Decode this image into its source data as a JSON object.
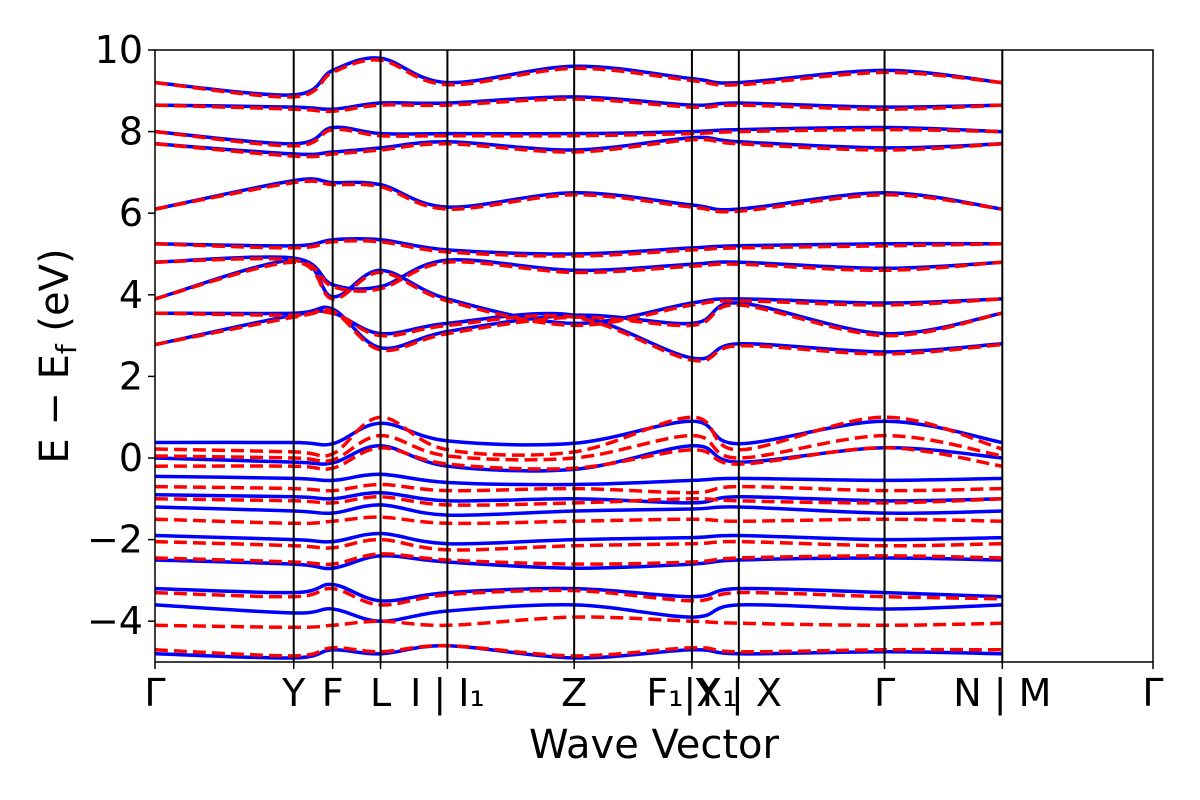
{
  "chart_data": {
    "type": "line",
    "title": "",
    "xlabel": "Wave Vector",
    "ylabel": "E − E_f (eV)",
    "ylabel_main": "E − E",
    "ylabel_sub": "f",
    "ylabel_unit": " (eV)",
    "ylim": [
      -5,
      10
    ],
    "yticks": [
      -4,
      -2,
      0,
      2,
      4,
      6,
      8,
      10
    ],
    "ytick_labels": [
      "−4",
      "−2",
      "0",
      "2",
      "4",
      "6",
      "8",
      "10"
    ],
    "grid": false,
    "kpoints": [
      {
        "label": "Γ",
        "k": 0.0
      },
      {
        "label": "Y",
        "k": 0.139
      },
      {
        "label": "F",
        "k": 0.178
      },
      {
        "label": "L",
        "k": 0.226
      },
      {
        "label": "I | I₁",
        "k": 0.293
      },
      {
        "label": "Z",
        "k": 0.42
      },
      {
        "label": "F₁|X₁",
        "k": 0.538
      },
      {
        "label": "Y | X",
        "k": 0.585
      },
      {
        "label": "Γ",
        "k": 0.731
      },
      {
        "label": "N | M",
        "k": 0.849
      },
      {
        "label": "Γ",
        "k": 0.98
      }
    ],
    "series": [
      {
        "color": "#0000ff",
        "style": "solid",
        "bands": [
          [
            0.38,
            0.38,
            0.35,
            0.85,
            0.42,
            0.36,
            0.9,
            0.35,
            0.9,
            0.38
          ],
          [
            0.0,
            -0.1,
            -0.12,
            0.3,
            -0.2,
            -0.28,
            0.3,
            -0.1,
            0.25,
            0.0
          ],
          [
            -0.45,
            -0.5,
            -0.55,
            -0.4,
            -0.6,
            -0.65,
            -0.55,
            -0.5,
            -0.55,
            -0.5
          ],
          [
            -0.9,
            -0.95,
            -1.0,
            -0.85,
            -1.05,
            -1.0,
            -1.1,
            -0.95,
            -1.05,
            -1.0
          ],
          [
            -1.2,
            -1.3,
            -1.35,
            -1.15,
            -1.4,
            -1.3,
            -1.25,
            -1.2,
            -1.35,
            -1.3
          ],
          [
            -1.9,
            -2.0,
            -2.05,
            -1.85,
            -2.1,
            -2.0,
            -1.95,
            -1.9,
            -2.0,
            -1.95
          ],
          [
            -2.5,
            -2.6,
            -2.7,
            -2.4,
            -2.55,
            -2.7,
            -2.6,
            -2.5,
            -2.45,
            -2.5
          ],
          [
            -3.2,
            -3.3,
            -3.1,
            -3.5,
            -3.3,
            -3.2,
            -3.4,
            -3.2,
            -3.3,
            -3.4
          ],
          [
            -3.6,
            -3.8,
            -3.7,
            -4.0,
            -3.75,
            -3.6,
            -3.9,
            -3.6,
            -3.7,
            -3.6
          ],
          [
            -4.8,
            -4.9,
            -4.7,
            -4.8,
            -4.6,
            -4.9,
            -4.7,
            -4.8,
            -4.75,
            -4.8
          ],
          [
            2.78,
            3.5,
            3.55,
            3.05,
            3.3,
            3.5,
            2.45,
            2.8,
            2.6,
            2.8
          ],
          [
            3.55,
            3.55,
            3.65,
            2.7,
            3.1,
            3.5,
            3.3,
            3.8,
            3.05,
            3.55
          ],
          [
            3.9,
            4.85,
            3.95,
            4.6,
            3.9,
            3.3,
            3.8,
            3.9,
            3.8,
            3.9
          ],
          [
            4.8,
            4.9,
            4.25,
            4.2,
            4.85,
            4.6,
            4.75,
            4.8,
            4.65,
            4.8
          ],
          [
            5.25,
            5.2,
            5.35,
            5.35,
            5.1,
            5.0,
            5.15,
            5.2,
            5.25,
            5.25
          ],
          [
            6.1,
            6.8,
            6.75,
            6.7,
            6.15,
            6.5,
            6.2,
            6.1,
            6.5,
            6.1
          ],
          [
            7.7,
            7.45,
            7.5,
            7.6,
            7.75,
            7.55,
            7.85,
            7.75,
            7.6,
            7.7
          ],
          [
            8.0,
            7.7,
            8.1,
            7.95,
            7.95,
            7.95,
            8.0,
            8.05,
            8.1,
            8.0
          ],
          [
            8.65,
            8.6,
            8.55,
            8.7,
            8.7,
            8.85,
            8.65,
            8.7,
            8.6,
            8.65
          ],
          [
            9.2,
            8.9,
            9.5,
            9.8,
            9.2,
            9.6,
            9.3,
            9.2,
            9.5,
            9.2
          ]
        ]
      },
      {
        "color": "#ff0000",
        "style": "dashed",
        "bands": [
          [
            0.22,
            0.15,
            0.1,
            1.0,
            0.2,
            0.15,
            1.0,
            0.2,
            1.0,
            0.22
          ],
          [
            0.05,
            0.0,
            -0.05,
            0.55,
            0.05,
            0.0,
            0.55,
            0.0,
            0.55,
            0.05
          ],
          [
            -0.2,
            -0.2,
            -0.25,
            0.25,
            -0.15,
            -0.25,
            0.2,
            -0.15,
            0.25,
            -0.2
          ],
          [
            -0.7,
            -0.75,
            -0.8,
            -0.65,
            -0.8,
            -0.75,
            -0.85,
            -0.7,
            -0.8,
            -0.75
          ],
          [
            -1.0,
            -1.05,
            -1.1,
            -0.95,
            -1.15,
            -1.1,
            -1.0,
            -1.05,
            -1.1,
            -1.0
          ],
          [
            -1.5,
            -1.6,
            -1.55,
            -1.45,
            -1.6,
            -1.55,
            -1.5,
            -1.55,
            -1.5,
            -1.55
          ],
          [
            -2.05,
            -2.15,
            -2.2,
            -2.0,
            -2.25,
            -2.15,
            -2.1,
            -2.05,
            -2.15,
            -2.1
          ],
          [
            -2.45,
            -2.55,
            -2.6,
            -2.35,
            -2.5,
            -2.6,
            -2.55,
            -2.45,
            -2.4,
            -2.45
          ],
          [
            -3.3,
            -3.4,
            -3.2,
            -3.6,
            -3.35,
            -3.25,
            -3.5,
            -3.3,
            -3.4,
            -3.45
          ],
          [
            -4.1,
            -4.15,
            -4.1,
            -4.0,
            -4.1,
            -3.9,
            -4.0,
            -4.05,
            -4.1,
            -4.05
          ],
          [
            -4.7,
            -4.85,
            -4.65,
            -4.75,
            -4.6,
            -4.85,
            -4.65,
            -4.75,
            -4.7,
            -4.7
          ],
          [
            2.78,
            3.45,
            3.55,
            3.0,
            3.25,
            3.45,
            2.4,
            2.75,
            2.55,
            2.78
          ],
          [
            3.55,
            3.5,
            3.6,
            2.65,
            3.05,
            3.45,
            3.25,
            3.75,
            3.0,
            3.55
          ],
          [
            3.9,
            4.8,
            3.9,
            4.55,
            3.85,
            3.25,
            3.75,
            3.85,
            3.75,
            3.9
          ],
          [
            4.8,
            4.85,
            4.2,
            4.15,
            4.8,
            4.55,
            4.7,
            4.75,
            4.6,
            4.8
          ],
          [
            5.25,
            5.15,
            5.3,
            5.3,
            5.05,
            4.95,
            5.1,
            5.15,
            5.2,
            5.25
          ],
          [
            6.1,
            6.75,
            6.7,
            6.65,
            6.1,
            6.45,
            6.15,
            6.05,
            6.45,
            6.1
          ],
          [
            7.7,
            7.4,
            7.45,
            7.55,
            7.7,
            7.5,
            7.8,
            7.7,
            7.55,
            7.7
          ],
          [
            8.0,
            7.65,
            8.05,
            7.9,
            7.9,
            7.9,
            7.95,
            8.0,
            8.05,
            8.0
          ],
          [
            8.65,
            8.55,
            8.5,
            8.65,
            8.65,
            8.8,
            8.6,
            8.65,
            8.55,
            8.65
          ],
          [
            9.2,
            8.85,
            9.45,
            9.75,
            9.15,
            9.55,
            9.25,
            9.15,
            9.45,
            9.2
          ]
        ]
      }
    ]
  }
}
